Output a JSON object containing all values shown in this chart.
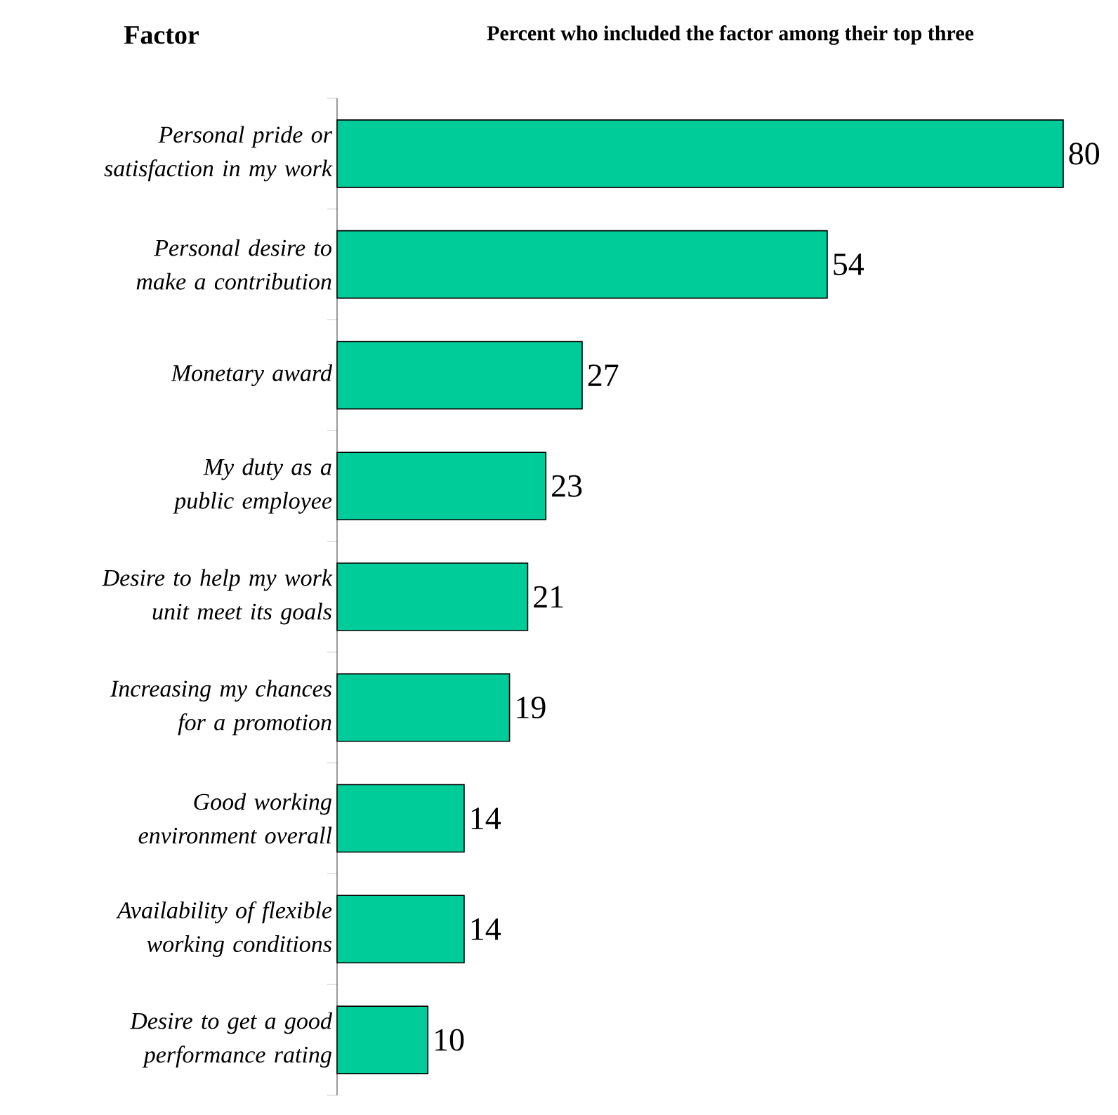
{
  "chart_data": {
    "type": "bar",
    "orientation": "horizontal",
    "title": "Percent who included the factor among their top three",
    "ylabel": "Factor",
    "categories": [
      "*Personal pride or satisfaction in my work*",
      "*Personal desire to make a contribution*",
      "*Monetary award*",
      "*My duty as a public employee*",
      "*Desire to help my work unit meet its goals*",
      "*Increasing my chances for a promotion*",
      "*Good working environment overall*",
      "*Availability of flexible working conditions*",
      "*Desire to get a good performance rating*"
    ],
    "values": [
      80,
      54,
      27,
      23,
      21,
      19,
      14,
      14,
      10
    ],
    "color": "#00cc99",
    "data_labels": true
  }
}
